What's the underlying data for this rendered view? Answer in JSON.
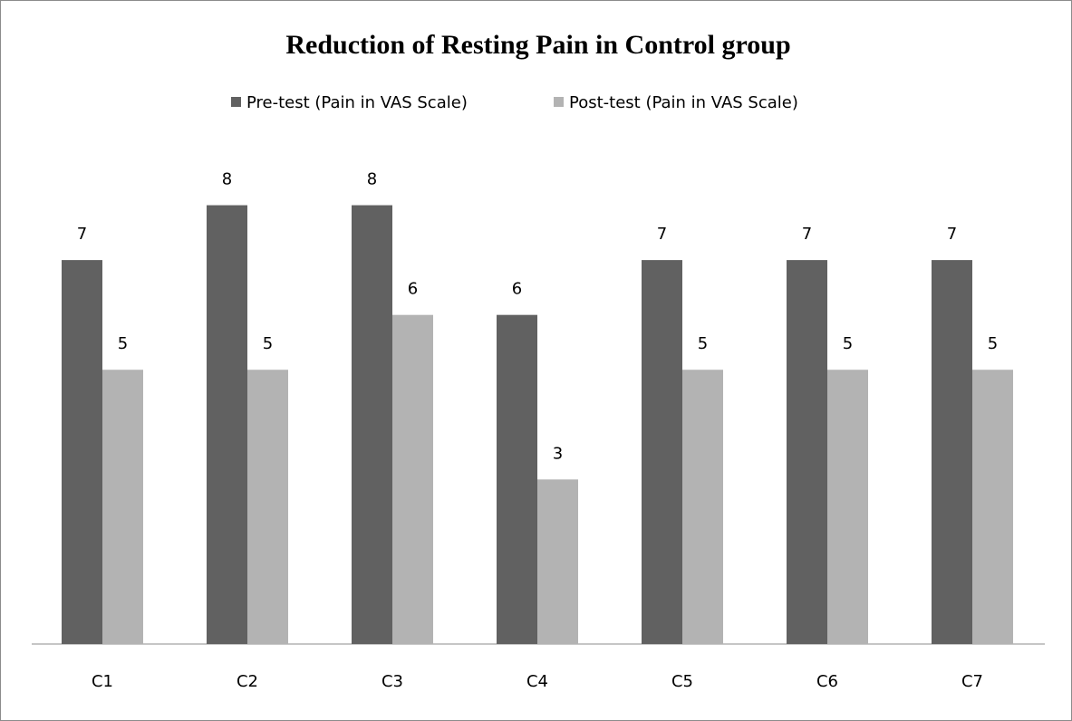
{
  "chart_data": {
    "type": "bar",
    "title": "Reduction of Resting Pain in Control group",
    "categories": [
      "C1",
      "C2",
      "C3",
      "C4",
      "C5",
      "C6",
      "C7"
    ],
    "series": [
      {
        "name": "Pre-test (Pain in VAS Scale)",
        "color": "#616161",
        "values": [
          7,
          8,
          8,
          6,
          7,
          7,
          7
        ]
      },
      {
        "name": "Post-test (Pain in VAS Scale)",
        "color": "#b3b3b3",
        "values": [
          5,
          5,
          6,
          3,
          5,
          5,
          5
        ]
      }
    ],
    "ylim": [
      0,
      9
    ],
    "legend": "top"
  }
}
